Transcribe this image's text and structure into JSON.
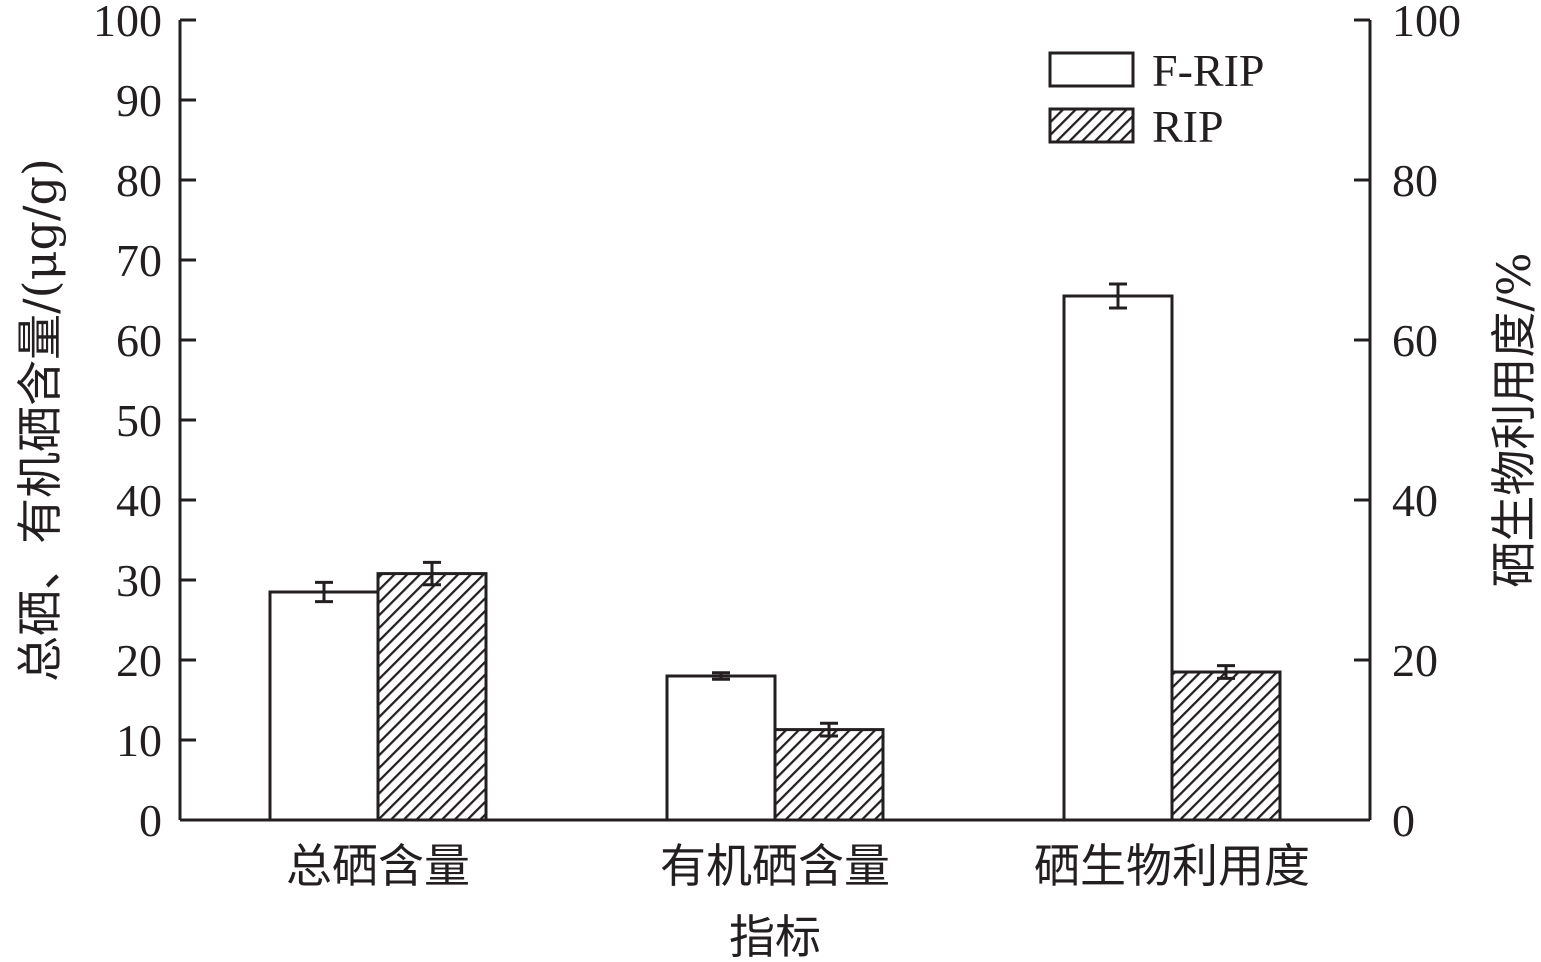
{
  "chart_data": {
    "type": "bar",
    "xlabel": "指标",
    "ylabel_left": "总硒、有机硒含量/(μg/g)",
    "ylabel_right": "硒生物利用度/%",
    "ylim_left": [
      0,
      100
    ],
    "ylim_right": [
      0,
      100
    ],
    "yticks_left": [
      "0",
      "10",
      "20",
      "30",
      "40",
      "50",
      "60",
      "70",
      "80",
      "90",
      "100"
    ],
    "yticks_right": [
      "0",
      "20",
      "40",
      "60",
      "80",
      "100"
    ],
    "categories": [
      "总硒含量",
      "有机硒含量",
      "硒生物利用度"
    ],
    "series": [
      {
        "name": "F-RIP",
        "pattern": "none",
        "values": [
          28.5,
          18.0,
          65.5
        ],
        "errors": [
          1.2,
          0.4,
          1.5
        ]
      },
      {
        "name": "RIP",
        "pattern": "hatched",
        "values": [
          30.8,
          11.3,
          18.5
        ],
        "errors": [
          1.4,
          0.8,
          0.8
        ]
      }
    ],
    "legend": {
      "placement": "top-right"
    },
    "grid": false,
    "colors": {
      "ink": "#231f20",
      "fill": "#ffffff"
    }
  }
}
